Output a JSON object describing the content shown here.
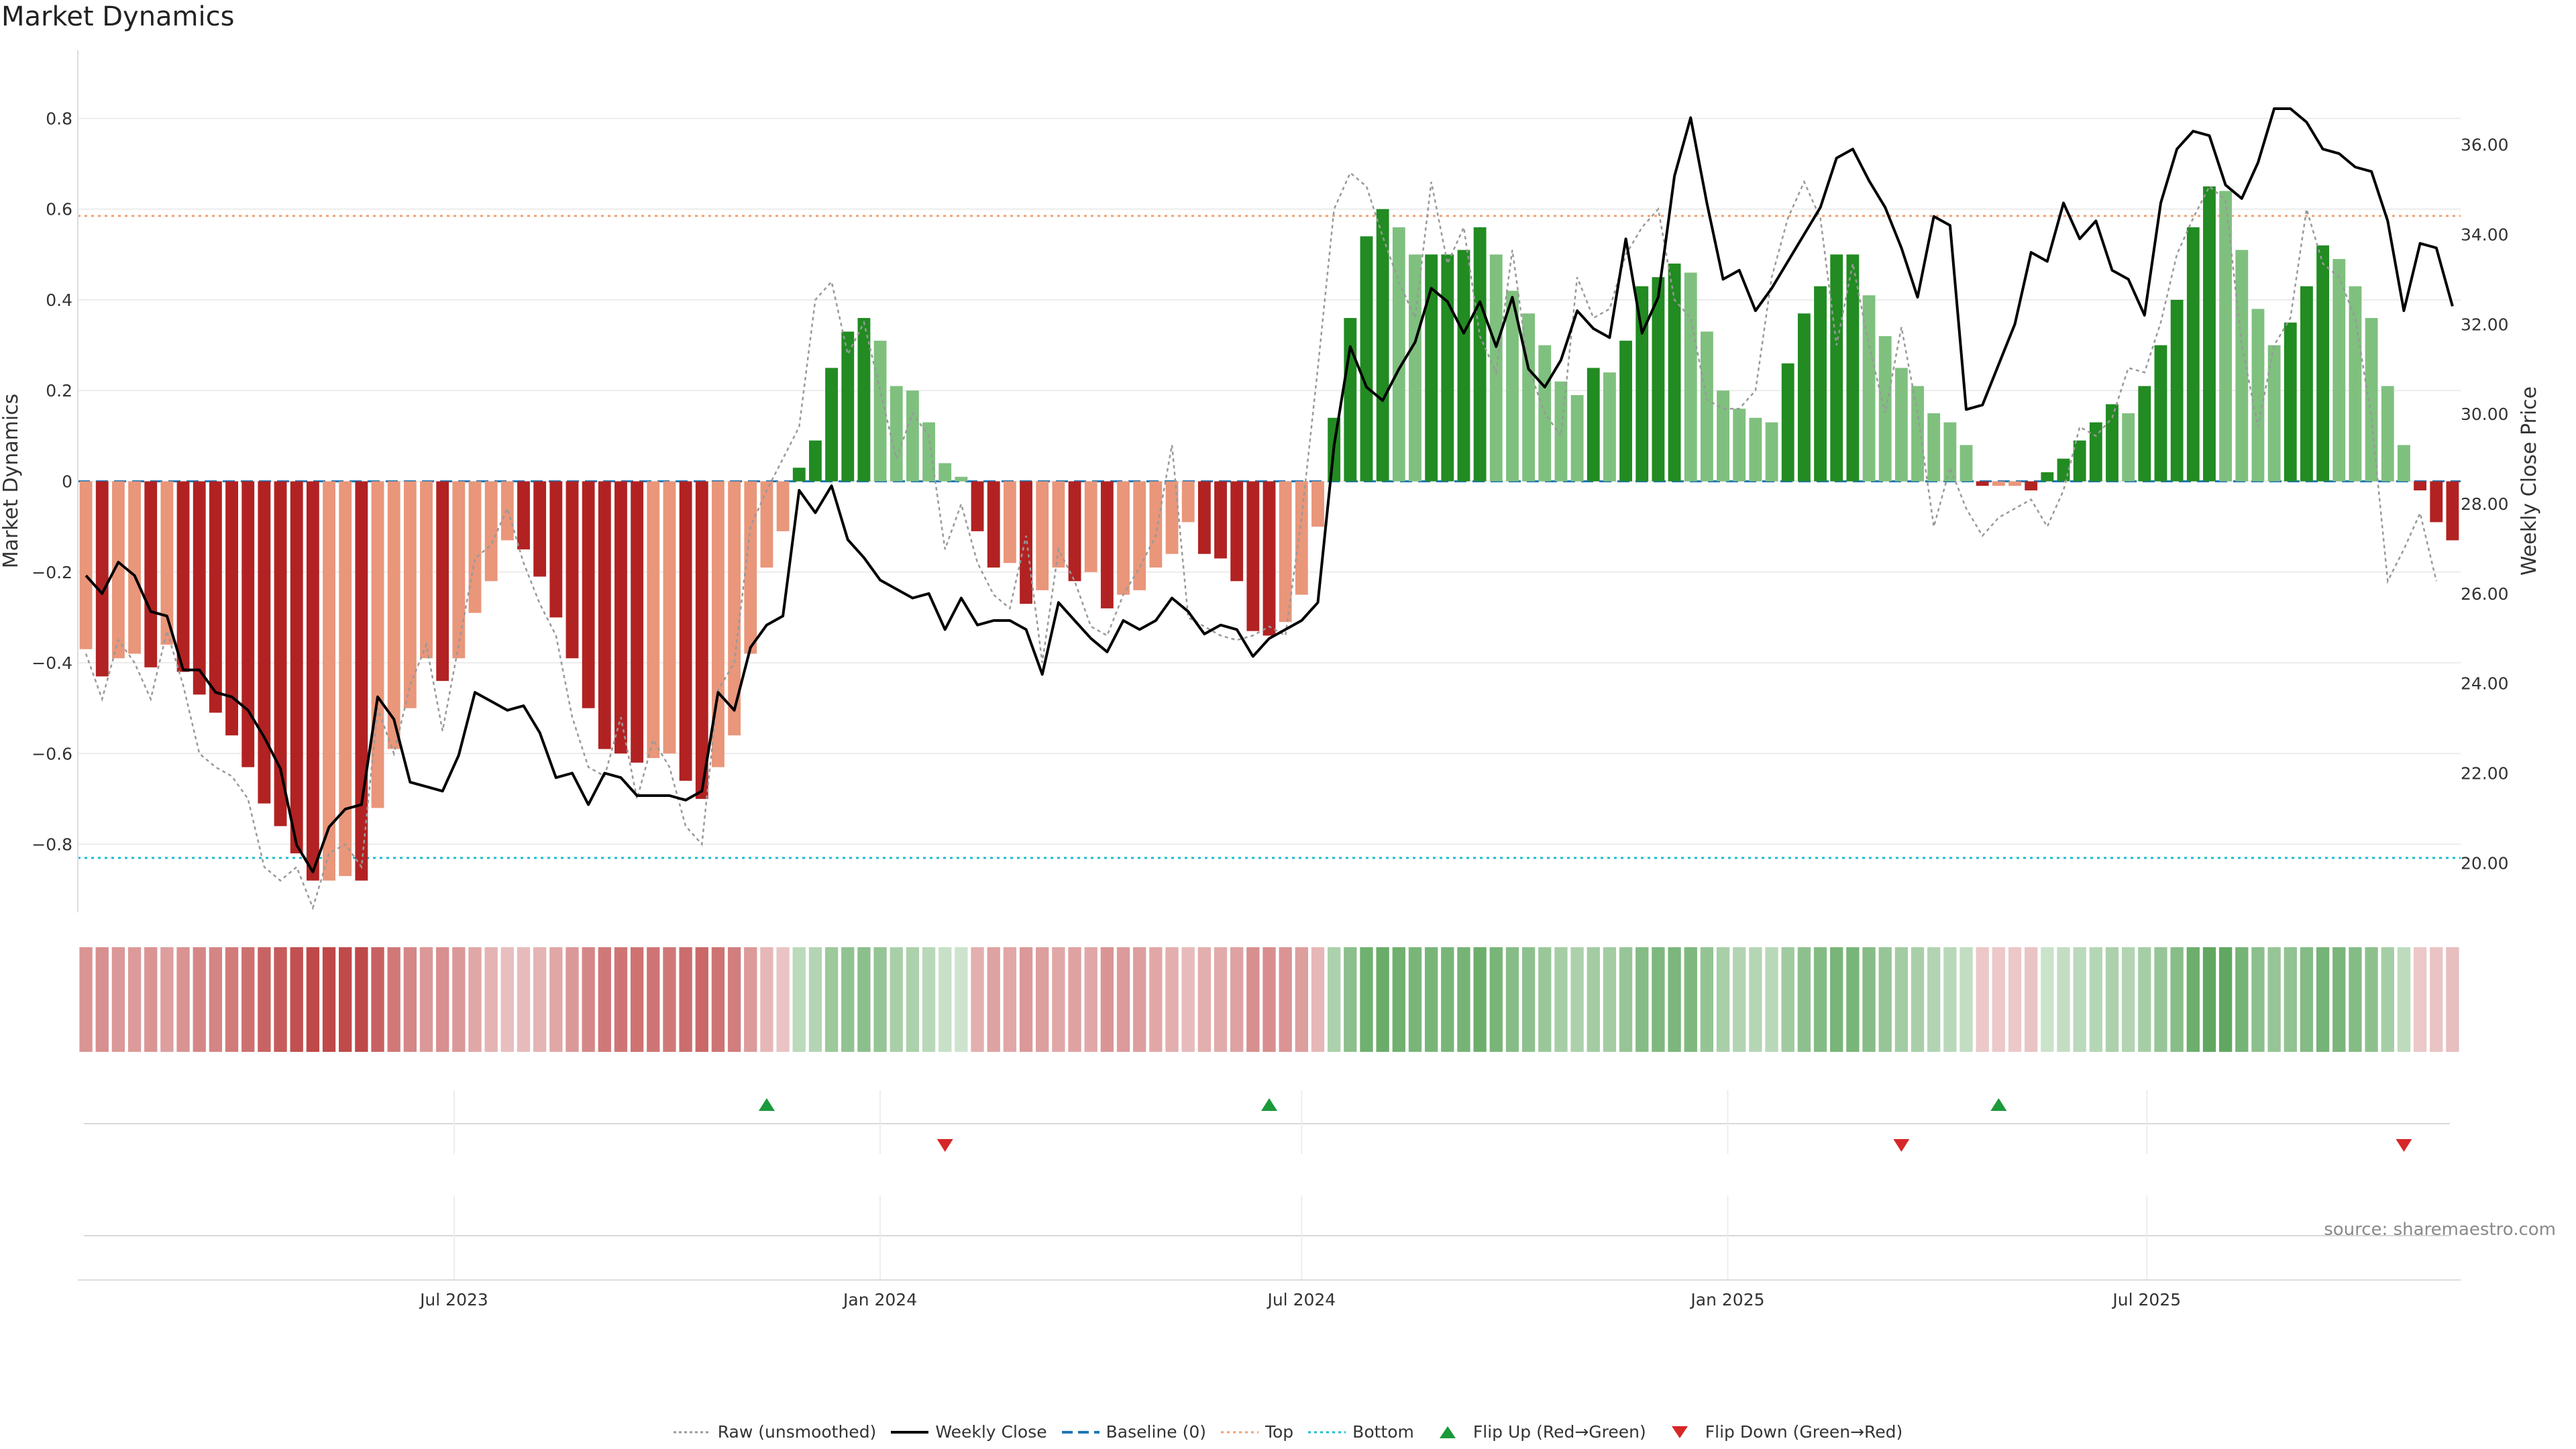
{
  "title": "Market Dynamics",
  "source": "source: sharemaestro.com",
  "colors": {
    "dark_red": "#b22222",
    "light_red": "#e9967a",
    "dark_green": "#228b22",
    "light_green": "#7fc07f",
    "close_line": "#000000",
    "raw_line": "#999999",
    "baseline": "#1f77b4",
    "top": "#f0a070",
    "bottom": "#17becf",
    "flip_up": "#1a9a3a",
    "flip_down": "#d62728"
  },
  "legend": [
    {
      "label": "Raw (unsmoothed)",
      "icon": "dotted-line-icon"
    },
    {
      "label": "Weekly Close",
      "icon": "solid-line-icon"
    },
    {
      "label": "Baseline (0)",
      "icon": "dashed-line-icon"
    },
    {
      "label": "Top",
      "icon": "dotted-orange-line-icon"
    },
    {
      "label": "Bottom",
      "icon": "dotted-cyan-line-icon"
    },
    {
      "label": "Flip Up (Red→Green)",
      "icon": "triangle-up-icon"
    },
    {
      "label": "Flip Down (Green→Red)",
      "icon": "triangle-down-icon"
    }
  ],
  "chart_data": {
    "type": "bar",
    "title": "Market Dynamics",
    "ylabel": "Market Dynamics",
    "y2label": "Weekly Close Price",
    "ylim": [
      -0.95,
      0.95
    ],
    "y2lim": [
      18.9,
      38.1
    ],
    "yticks": [
      "0.8",
      "0.6",
      "0.4",
      "0.2",
      "0",
      "−0.2",
      "−0.4",
      "−0.6",
      "−0.8"
    ],
    "y2ticks": [
      "36.00",
      "34.00",
      "32.00",
      "30.00",
      "28.00",
      "26.00",
      "24.00",
      "22.00",
      "20.00"
    ],
    "xticks": [
      "Jul 2023",
      "Jan 2024",
      "Jul 2024",
      "Jan 2025",
      "Jul 2025"
    ],
    "top_level": 0.585,
    "bottom_level": -0.83,
    "baseline": 0,
    "start_date": "2023-01-23",
    "week_step_days": 7,
    "values": [
      -0.37,
      -0.43,
      -0.39,
      -0.38,
      -0.41,
      -0.36,
      -0.42,
      -0.47,
      -0.51,
      -0.56,
      -0.63,
      -0.71,
      -0.76,
      -0.82,
      -0.88,
      -0.88,
      -0.87,
      -0.88,
      -0.72,
      -0.59,
      -0.5,
      -0.39,
      -0.44,
      -0.39,
      -0.29,
      -0.22,
      -0.13,
      -0.15,
      -0.21,
      -0.3,
      -0.39,
      -0.5,
      -0.59,
      -0.6,
      -0.62,
      -0.61,
      -0.6,
      -0.66,
      -0.7,
      -0.63,
      -0.56,
      -0.38,
      -0.19,
      -0.11,
      0.03,
      0.09,
      0.25,
      0.33,
      0.36,
      0.31,
      0.21,
      0.2,
      0.13,
      0.04,
      0.01,
      -0.11,
      -0.19,
      -0.18,
      -0.27,
      -0.24,
      -0.19,
      -0.22,
      -0.2,
      -0.28,
      -0.25,
      -0.24,
      -0.19,
      -0.16,
      -0.09,
      -0.16,
      -0.17,
      -0.22,
      -0.33,
      -0.34,
      -0.31,
      -0.25,
      -0.1,
      0.14,
      0.36,
      0.54,
      0.6,
      0.56,
      0.5,
      0.5,
      0.5,
      0.51,
      0.56,
      0.5,
      0.42,
      0.37,
      0.3,
      0.22,
      0.19,
      0.25,
      0.24,
      0.31,
      0.43,
      0.45,
      0.48,
      0.46,
      0.33,
      0.2,
      0.16,
      0.14,
      0.13,
      0.26,
      0.37,
      0.43,
      0.5,
      0.5,
      0.41,
      0.32,
      0.25,
      0.21,
      0.15,
      0.13,
      0.08,
      -0.01,
      -0.01,
      -0.01,
      -0.02,
      0.02,
      0.05,
      0.09,
      0.13,
      0.17,
      0.15,
      0.21,
      0.3,
      0.4,
      0.56,
      0.65,
      0.64,
      0.51,
      0.38,
      0.3,
      0.35,
      0.43,
      0.52,
      0.49,
      0.43,
      0.36,
      0.21,
      0.08,
      -0.02,
      -0.09,
      -0.13
    ],
    "raw": [
      -0.38,
      -0.48,
      -0.35,
      -0.4,
      -0.48,
      -0.33,
      -0.45,
      -0.6,
      -0.63,
      -0.65,
      -0.7,
      -0.85,
      -0.88,
      -0.85,
      -0.94,
      -0.82,
      -0.8,
      -0.85,
      -0.5,
      -0.6,
      -0.45,
      -0.36,
      -0.55,
      -0.36,
      -0.17,
      -0.14,
      -0.06,
      -0.18,
      -0.27,
      -0.34,
      -0.52,
      -0.63,
      -0.65,
      -0.52,
      -0.7,
      -0.57,
      -0.63,
      -0.76,
      -0.8,
      -0.46,
      -0.4,
      -0.1,
      -0.02,
      0.05,
      0.12,
      0.4,
      0.44,
      0.28,
      0.35,
      0.2,
      0.05,
      0.15,
      0.1,
      -0.15,
      -0.05,
      -0.18,
      -0.25,
      -0.28,
      -0.12,
      -0.4,
      -0.15,
      -0.22,
      -0.32,
      -0.34,
      -0.25,
      -0.19,
      -0.12,
      0.08,
      -0.3,
      -0.32,
      -0.34,
      -0.35,
      -0.34,
      -0.32,
      -0.34,
      -0.08,
      0.25,
      0.6,
      0.68,
      0.65,
      0.54,
      0.44,
      0.36,
      0.66,
      0.48,
      0.56,
      0.32,
      0.24,
      0.51,
      0.25,
      0.15,
      0.1,
      0.45,
      0.36,
      0.38,
      0.5,
      0.56,
      0.6,
      0.4,
      0.36,
      0.18,
      0.16,
      0.16,
      0.2,
      0.45,
      0.58,
      0.66,
      0.58,
      0.3,
      0.48,
      0.3,
      0.15,
      0.34,
      0.15,
      -0.1,
      0.03,
      -0.06,
      -0.12,
      -0.08,
      -0.06,
      -0.04,
      -0.1,
      -0.02,
      0.12,
      0.1,
      0.14,
      0.25,
      0.24,
      0.35,
      0.5,
      0.58,
      0.65,
      0.62,
      0.3,
      0.12,
      0.3,
      0.36,
      0.6,
      0.48,
      0.45,
      0.36,
      0.14,
      -0.22,
      -0.15,
      -0.07,
      -0.22
    ],
    "close": [
      26.4,
      26.0,
      26.7,
      26.4,
      25.6,
      25.5,
      24.3,
      24.3,
      23.8,
      23.7,
      23.4,
      22.8,
      22.1,
      20.4,
      19.8,
      20.8,
      21.2,
      21.3,
      23.7,
      23.2,
      21.8,
      21.7,
      21.6,
      22.4,
      23.8,
      23.6,
      23.4,
      23.5,
      22.9,
      21.9,
      22.0,
      21.3,
      22.0,
      21.9,
      21.5,
      21.5,
      21.5,
      21.4,
      21.6,
      23.8,
      23.4,
      24.8,
      25.3,
      25.5,
      28.3,
      27.8,
      28.4,
      27.2,
      26.8,
      26.3,
      26.1,
      25.9,
      26.0,
      25.2,
      25.9,
      25.3,
      25.4,
      25.4,
      25.2,
      24.2,
      25.8,
      25.4,
      25.0,
      24.7,
      25.4,
      25.2,
      25.4,
      25.9,
      25.6,
      25.1,
      25.3,
      25.2,
      24.6,
      25.0,
      25.2,
      25.4,
      25.8,
      29.3,
      31.5,
      30.6,
      30.3,
      31.0,
      31.6,
      32.8,
      32.5,
      31.8,
      32.5,
      31.5,
      32.6,
      31.0,
      30.6,
      31.2,
      32.3,
      31.9,
      31.7,
      33.9,
      31.8,
      32.6,
      35.3,
      36.6,
      34.7,
      33.0,
      33.2,
      32.3,
      32.8,
      33.4,
      34.0,
      34.6,
      35.7,
      35.9,
      35.2,
      34.6,
      33.7,
      32.6,
      34.4,
      34.2,
      30.1,
      30.2,
      31.1,
      32.0,
      33.6,
      33.4,
      34.7,
      33.9,
      34.3,
      33.2,
      33.0,
      32.2,
      34.7,
      35.9,
      36.3,
      36.2,
      35.1,
      34.8,
      35.6,
      36.8,
      36.8,
      36.5,
      35.9,
      35.8,
      35.5,
      35.4,
      34.3,
      32.3,
      33.8,
      33.7,
      32.4
    ],
    "heat_levels": [
      0.42,
      0.45,
      0.4,
      0.38,
      0.42,
      0.36,
      0.43,
      0.5,
      0.52,
      0.58,
      0.65,
      0.73,
      0.78,
      0.85,
      0.9,
      0.9,
      0.89,
      0.9,
      0.74,
      0.6,
      0.5,
      0.4,
      0.45,
      0.4,
      0.3,
      0.23,
      0.16,
      0.18,
      0.22,
      0.3,
      0.4,
      0.5,
      0.6,
      0.62,
      0.64,
      0.62,
      0.6,
      0.67,
      0.7,
      0.63,
      0.56,
      0.38,
      0.2,
      0.12,
      0.2,
      0.25,
      0.4,
      0.48,
      0.52,
      0.45,
      0.32,
      0.3,
      0.22,
      0.12,
      0.08,
      0.25,
      0.33,
      0.3,
      0.4,
      0.36,
      0.3,
      0.33,
      0.3,
      0.42,
      0.38,
      0.36,
      0.3,
      0.26,
      0.18,
      0.26,
      0.28,
      0.33,
      0.45,
      0.46,
      0.42,
      0.36,
      0.2,
      0.3,
      0.52,
      0.7,
      0.74,
      0.7,
      0.64,
      0.64,
      0.64,
      0.66,
      0.72,
      0.64,
      0.55,
      0.5,
      0.42,
      0.34,
      0.3,
      0.36,
      0.36,
      0.44,
      0.56,
      0.6,
      0.62,
      0.6,
      0.46,
      0.32,
      0.26,
      0.24,
      0.22,
      0.38,
      0.5,
      0.57,
      0.64,
      0.64,
      0.55,
      0.44,
      0.36,
      0.32,
      0.26,
      0.22,
      0.16,
      0.1,
      0.1,
      0.1,
      0.12,
      0.1,
      0.14,
      0.2,
      0.24,
      0.3,
      0.26,
      0.34,
      0.44,
      0.54,
      0.72,
      0.8,
      0.8,
      0.66,
      0.52,
      0.44,
      0.48,
      0.56,
      0.66,
      0.63,
      0.56,
      0.5,
      0.34,
      0.18,
      0.1,
      0.12,
      0.16
    ],
    "flip_up_weeks": [
      42,
      73,
      118
    ],
    "flip_down_weeks": [
      53,
      112,
      143
    ]
  }
}
